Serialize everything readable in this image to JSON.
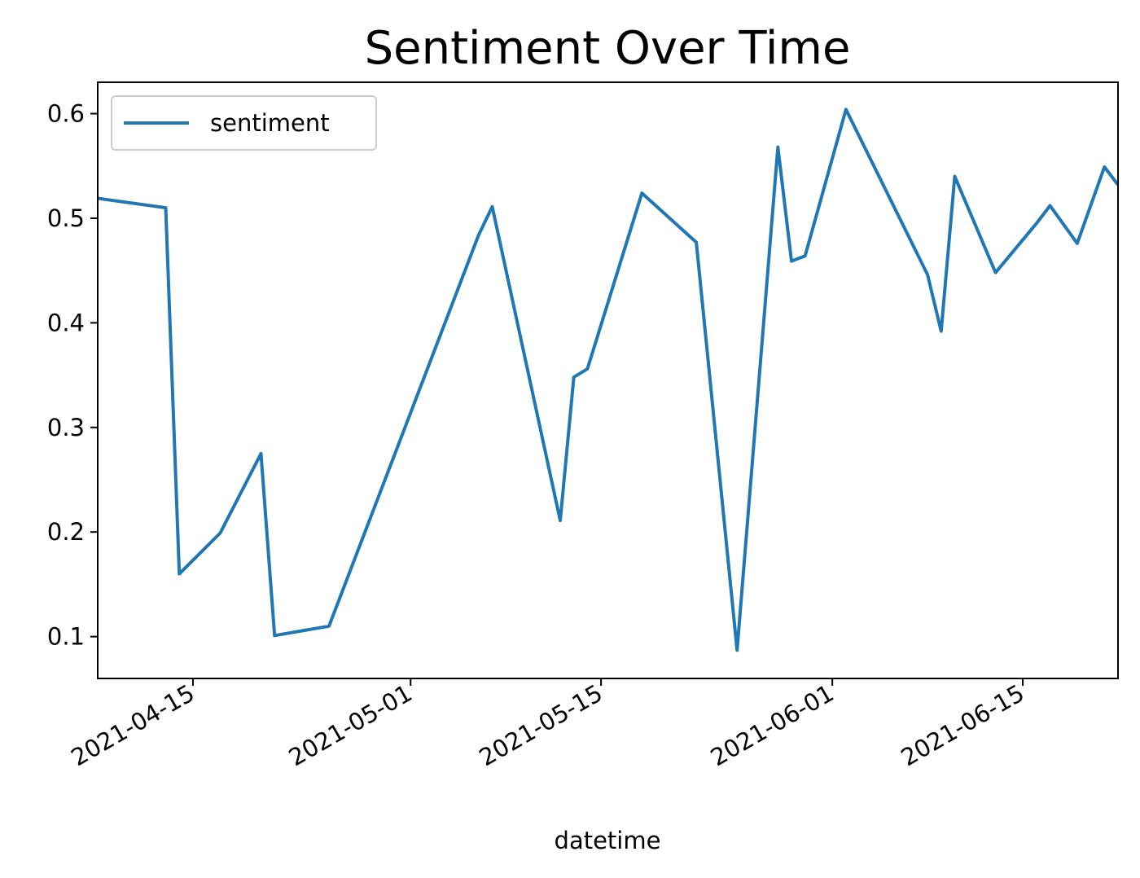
{
  "chart_data": {
    "type": "line",
    "title": "Sentiment Over Time",
    "xlabel": "datetime",
    "ylabel": "",
    "x_range": [
      "2021-04-08",
      "2021-06-22"
    ],
    "ylim": [
      0.06,
      0.63
    ],
    "x_ticks": [
      "2021-04-15",
      "2021-05-01",
      "2021-05-15",
      "2021-06-01",
      "2021-06-15"
    ],
    "y_ticks": [
      "0.1",
      "0.2",
      "0.3",
      "0.4",
      "0.5",
      "0.6"
    ],
    "grid": false,
    "legend_position": "top-left",
    "series": [
      {
        "name": "sentiment",
        "color": "#1f77b4",
        "points": [
          {
            "x": "2021-04-08",
            "y": 0.519
          },
          {
            "x": "2021-04-13",
            "y": 0.51
          },
          {
            "x": "2021-04-14",
            "y": 0.16
          },
          {
            "x": "2021-04-17",
            "y": 0.199
          },
          {
            "x": "2021-04-20",
            "y": 0.275
          },
          {
            "x": "2021-04-21",
            "y": 0.101
          },
          {
            "x": "2021-04-25",
            "y": 0.11
          },
          {
            "x": "2021-05-06",
            "y": 0.484
          },
          {
            "x": "2021-05-07",
            "y": 0.511
          },
          {
            "x": "2021-05-12",
            "y": 0.211
          },
          {
            "x": "2021-05-13",
            "y": 0.348
          },
          {
            "x": "2021-05-14",
            "y": 0.356
          },
          {
            "x": "2021-05-18",
            "y": 0.524
          },
          {
            "x": "2021-05-22",
            "y": 0.477
          },
          {
            "x": "2021-05-25",
            "y": 0.087
          },
          {
            "x": "2021-05-28",
            "y": 0.568
          },
          {
            "x": "2021-05-29",
            "y": 0.459
          },
          {
            "x": "2021-05-30",
            "y": 0.464
          },
          {
            "x": "2021-06-02",
            "y": 0.604
          },
          {
            "x": "2021-06-08",
            "y": 0.446
          },
          {
            "x": "2021-06-09",
            "y": 0.392
          },
          {
            "x": "2021-06-10",
            "y": 0.54
          },
          {
            "x": "2021-06-13",
            "y": 0.448
          },
          {
            "x": "2021-06-16",
            "y": 0.495
          },
          {
            "x": "2021-06-17",
            "y": 0.512
          },
          {
            "x": "2021-06-19",
            "y": 0.476
          },
          {
            "x": "2021-06-21",
            "y": 0.549
          },
          {
            "x": "2021-06-22",
            "y": 0.532
          }
        ]
      }
    ]
  }
}
